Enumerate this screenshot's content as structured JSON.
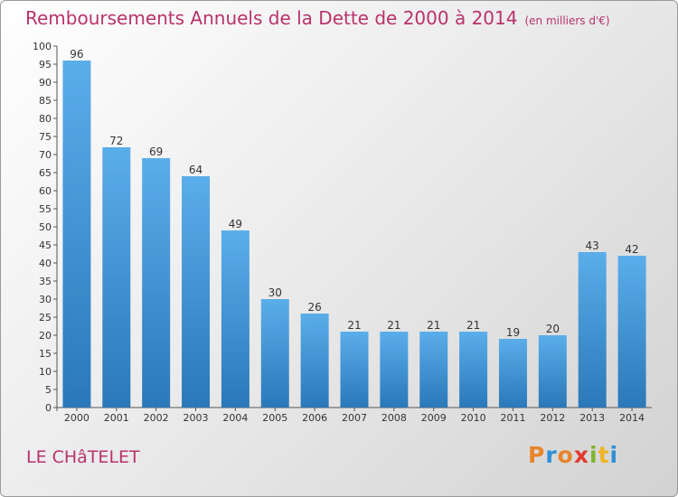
{
  "header": {
    "title": "Remboursements Annuels de la Dette de 2000 à 2014",
    "unit": "(en milliers d'€)"
  },
  "footer": {
    "place": "LE CHâTELET",
    "logo_text": "Proxiti",
    "logo_colors": [
      "#e8842a",
      "#2f8fd8",
      "#e8842a",
      "#e03a2f",
      "#7db52f",
      "#f0b323",
      "#2f8fd8"
    ]
  },
  "chart_data": {
    "type": "bar",
    "title": "Remboursements Annuels de la Dette de 2000 à 2014",
    "categories": [
      "2000",
      "2001",
      "2002",
      "2003",
      "2004",
      "2005",
      "2006",
      "2007",
      "2008",
      "2009",
      "2010",
      "2011",
      "2012",
      "2013",
      "2014"
    ],
    "values": [
      96,
      72,
      69,
      64,
      49,
      30,
      26,
      21,
      21,
      21,
      21,
      19,
      20,
      43,
      42
    ],
    "ylim": [
      0,
      100
    ],
    "ytick_step": 5,
    "grid": false,
    "bar_color_top": "#5aaeea",
    "bar_color_bottom": "#2a78b8",
    "label_color": "#333333"
  }
}
